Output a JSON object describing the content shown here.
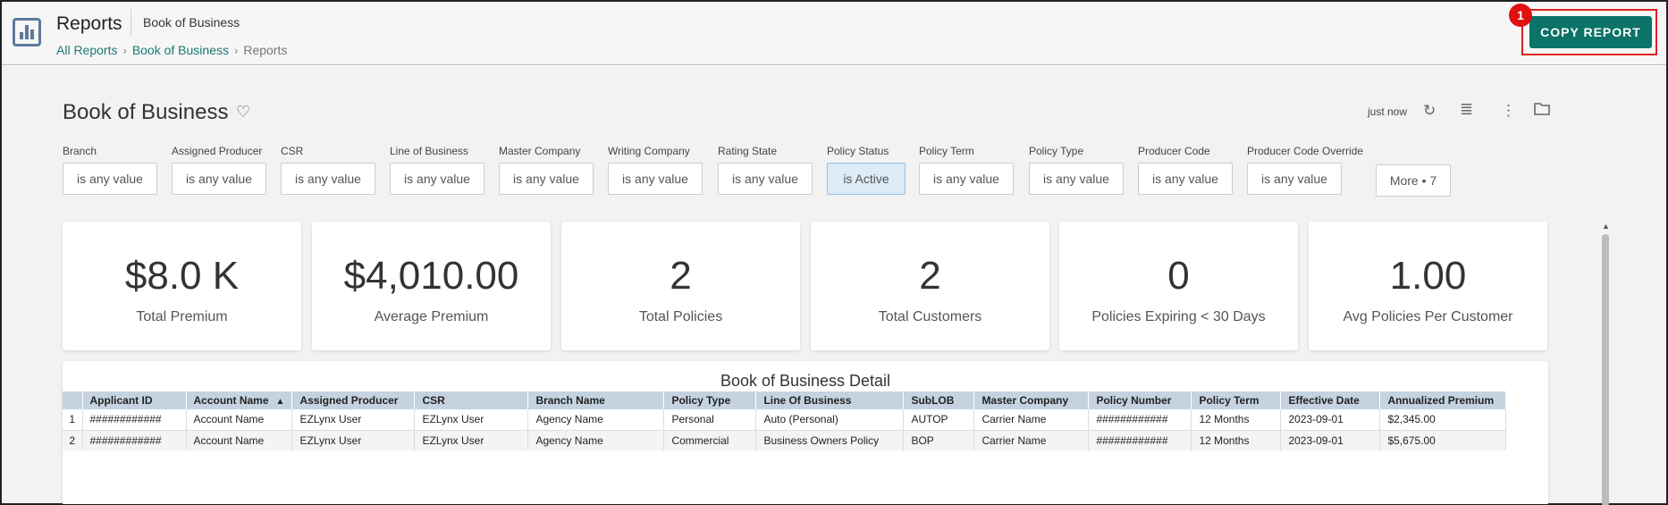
{
  "header": {
    "app_title": "Reports",
    "app_subtitle": "Book of Business",
    "breadcrumb": [
      "All Reports",
      "Book of Business",
      "Reports"
    ],
    "copy_button": "COPY REPORT",
    "badge": "1"
  },
  "dashboard": {
    "title": "Book of Business",
    "updated": "just now",
    "filters": [
      {
        "label": "Branch",
        "value": "is any value"
      },
      {
        "label": "Assigned Producer",
        "value": "is any value"
      },
      {
        "label": "CSR",
        "value": "is any value"
      },
      {
        "label": "Line of Business",
        "value": "is any value"
      },
      {
        "label": "Master Company",
        "value": "is any value"
      },
      {
        "label": "Writing Company",
        "value": "is any value"
      },
      {
        "label": "Rating State",
        "value": "is any value"
      },
      {
        "label": "Policy Status",
        "value": "is Active"
      },
      {
        "label": "Policy Term",
        "value": "is any value"
      },
      {
        "label": "Policy Type",
        "value": "is any value"
      },
      {
        "label": "Producer Code",
        "value": "is any value"
      },
      {
        "label": "Producer Code Override",
        "value": "is any value"
      }
    ],
    "more_filters": "More • 7",
    "kpis": [
      {
        "value": "$8.0 K",
        "label": "Total Premium"
      },
      {
        "value": "$4,010.00",
        "label": "Average Premium"
      },
      {
        "value": "2",
        "label": "Total Policies"
      },
      {
        "value": "2",
        "label": "Total Customers"
      },
      {
        "value": "0",
        "label": "Policies Expiring < 30 Days"
      },
      {
        "value": "1.00",
        "label": "Avg Policies Per Customer"
      }
    ]
  },
  "detail": {
    "title": "Book of Business Detail",
    "columns": [
      "Applicant ID",
      "Account Name",
      "Assigned Producer",
      "CSR",
      "Branch Name",
      "Policy Type",
      "Line Of Business",
      "SubLOB",
      "Master Company",
      "Policy Number",
      "Policy Term",
      "Effective Date",
      "Annualized Premium"
    ],
    "rows": [
      {
        "index": "1",
        "cells": [
          "############",
          "Account Name",
          "EZLynx User",
          "EZLynx User",
          "Agency Name",
          "Personal",
          "Auto (Personal)",
          "AUTOP",
          "Carrier Name",
          "############",
          "12 Months",
          "2023-09-01",
          "$2,345.00"
        ]
      },
      {
        "index": "2",
        "cells": [
          "############",
          "Account Name",
          "EZLynx User",
          "EZLynx User",
          "Agency Name",
          "Commercial",
          "Business Owners Policy",
          "BOP",
          "Carrier Name",
          "############",
          "12 Months",
          "2023-09-01",
          "$5,675.00"
        ]
      }
    ]
  }
}
